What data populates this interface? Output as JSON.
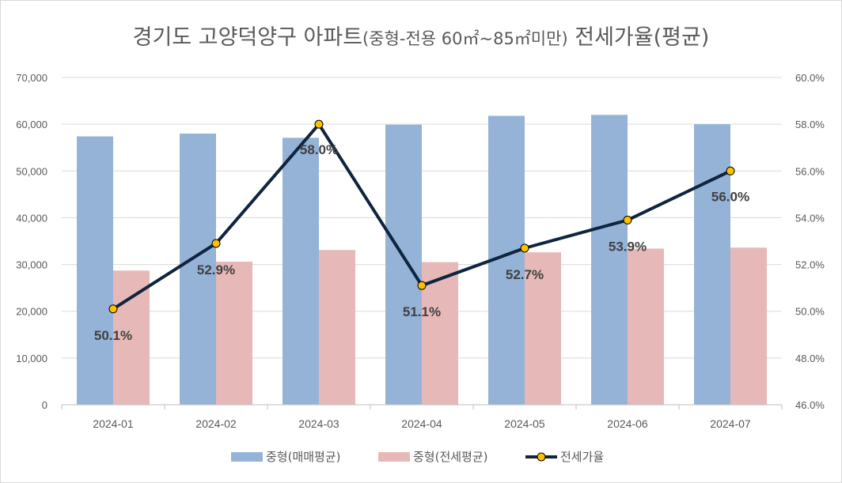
{
  "chart_data": {
    "type": "bar",
    "title_main": "경기도 고양덕양구 아파트",
    "title_sub": "(중형-전용 60㎡~85㎡미만)",
    "title_end": " 전세가율(평균)",
    "categories": [
      "2024-01",
      "2024-02",
      "2024-03",
      "2024-04",
      "2024-05",
      "2024-06",
      "2024-07"
    ],
    "series": [
      {
        "name": "중형(매매평균)",
        "type": "bar",
        "axis": "left",
        "color": "#95b3d7",
        "values": [
          57400,
          58000,
          57100,
          59900,
          61800,
          62000,
          60000
        ]
      },
      {
        "name": "중형(전세평균)",
        "type": "bar",
        "axis": "left",
        "color": "#e6b9b8",
        "values": [
          28700,
          30600,
          33100,
          30500,
          32600,
          33400,
          33600
        ]
      },
      {
        "name": "전세가율",
        "type": "line",
        "axis": "right",
        "color": "#0f243e",
        "marker_color": "#ffc000",
        "values": [
          50.1,
          52.9,
          58.0,
          51.1,
          52.7,
          53.9,
          56.0
        ],
        "labels": [
          "50.1%",
          "52.9%",
          "58.0%",
          "51.1%",
          "52.7%",
          "53.9%",
          "56.0%"
        ]
      }
    ],
    "y_left": {
      "min": 0,
      "max": 70000,
      "step": 10000,
      "ticks": [
        "0",
        "10,000",
        "20,000",
        "30,000",
        "40,000",
        "50,000",
        "60,000",
        "70,000"
      ]
    },
    "y_right": {
      "min": 46,
      "max": 60,
      "step": 2,
      "ticks": [
        "46.0%",
        "48.0%",
        "50.0%",
        "52.0%",
        "54.0%",
        "56.0%",
        "58.0%",
        "60.0%"
      ]
    },
    "grid": true,
    "legend_position": "bottom"
  }
}
